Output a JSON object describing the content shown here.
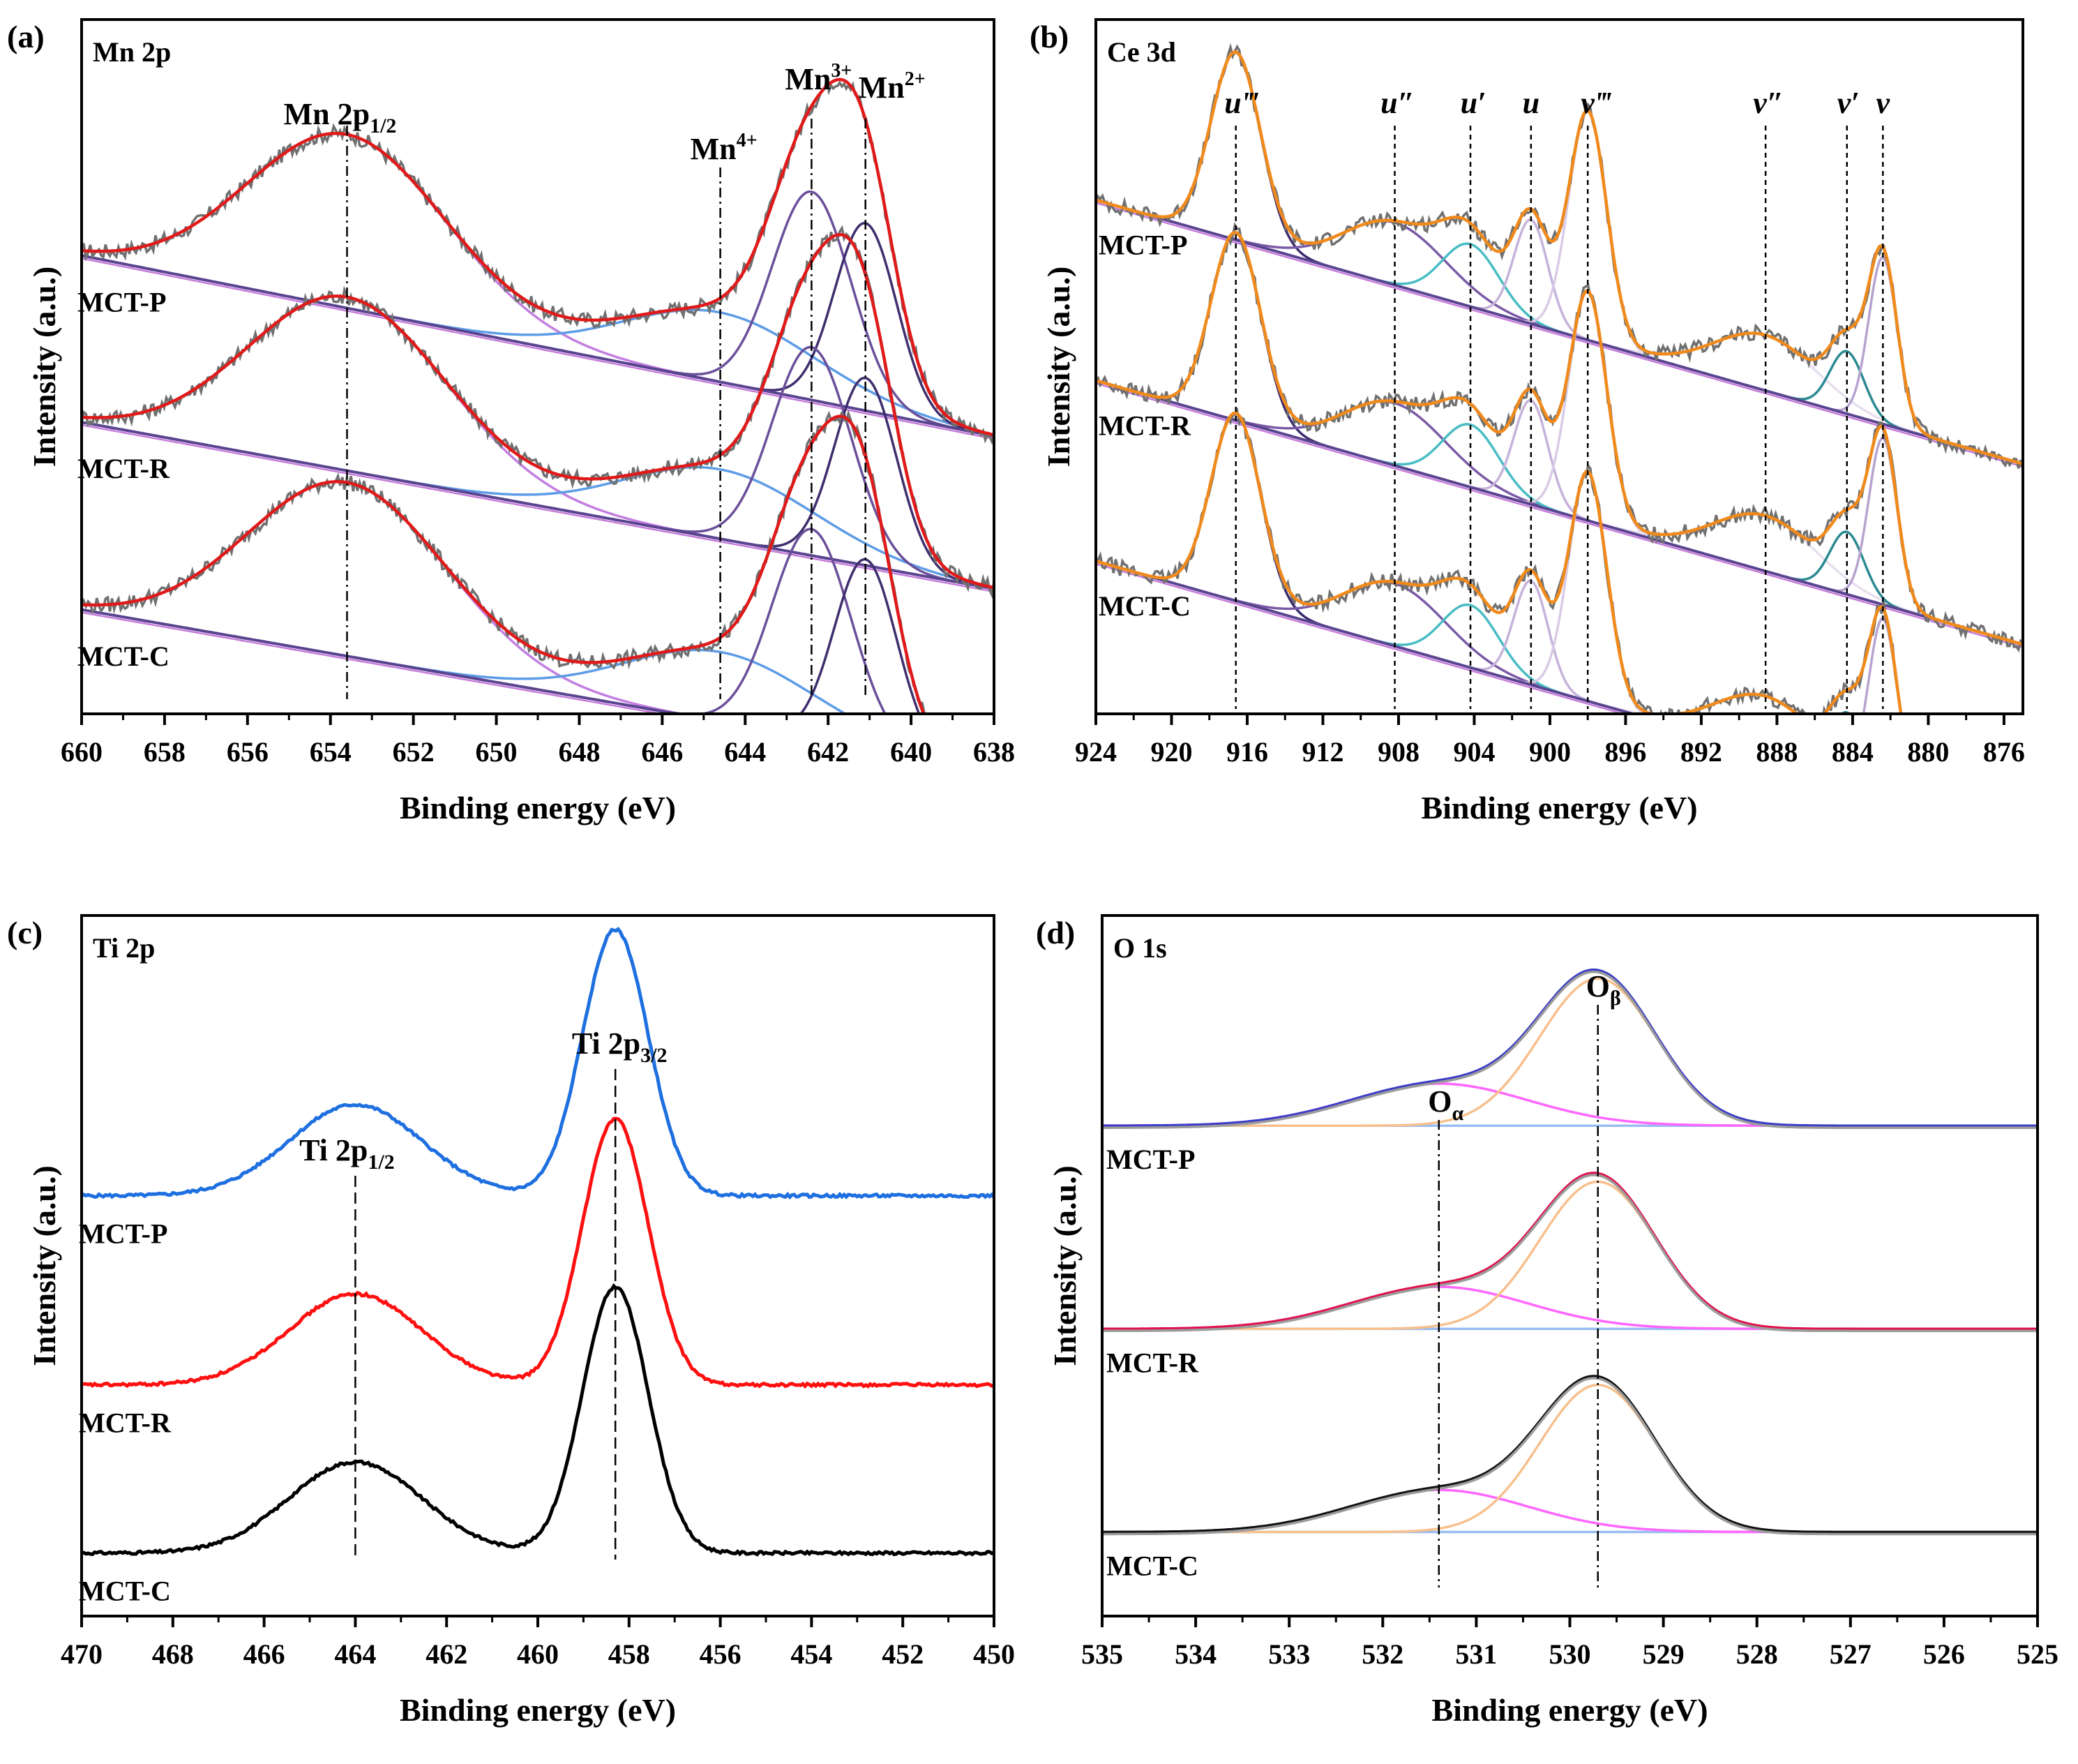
{
  "chart_data": [
    {
      "type": "line",
      "panel": "(a)",
      "region": "Mn 2p",
      "xlabel": "Binding energy (eV)",
      "ylabel": "Intensity (a.u.)",
      "xlim": [
        660,
        638
      ],
      "xticks": [
        660,
        658,
        656,
        654,
        652,
        650,
        648,
        646,
        644,
        642,
        640,
        638
      ],
      "series": [
        {
          "name": "MCT-P",
          "bg": [
            0.66,
            0.4
          ]
        },
        {
          "name": "MCT-R",
          "bg": [
            0.42,
            0.18
          ]
        },
        {
          "name": "MCT-C",
          "bg": [
            0.15,
            -0.08
          ]
        }
      ],
      "components": [
        {
          "center": 653.6,
          "width": 2.4,
          "amp": 0.25,
          "color": "#c27fe0",
          "label": "Mn 2p",
          "sub": "1/2"
        },
        {
          "center": 644.6,
          "width": 2.3,
          "amp": 0.1,
          "color": "#5d9ce6",
          "label": "Mn",
          "sup": "4+"
        },
        {
          "center": 642.4,
          "width": 0.95,
          "amp": 0.3,
          "color": "#6b4f9a",
          "label": "Mn",
          "sup": "3+"
        },
        {
          "center": 641.1,
          "width": 0.75,
          "amp": 0.27,
          "color": "#3f2e6e",
          "label": "Mn",
          "sup": "2+"
        }
      ]
    },
    {
      "type": "line",
      "panel": "(b)",
      "region": "Ce 3d",
      "xlabel": "Binding energy (eV)",
      "ylabel": "Intensity (a.u.)",
      "xlim": [
        924,
        875
      ],
      "xticks": [
        924,
        920,
        916,
        912,
        908,
        904,
        900,
        896,
        892,
        888,
        884,
        880,
        876
      ],
      "series": [
        {
          "name": "MCT-P",
          "bg": [
            0.74,
            0.36
          ]
        },
        {
          "name": "MCT-R",
          "bg": [
            0.48,
            0.1
          ]
        },
        {
          "name": "MCT-C",
          "bg": [
            0.22,
            -0.16
          ]
        }
      ],
      "components": [
        {
          "center": 916.6,
          "width": 1.3,
          "amp": 0.27,
          "color": "#3d2c6e",
          "label": "u‴"
        },
        {
          "center": 908.2,
          "width": 2.7,
          "amp": 0.09,
          "color": "#7b5aa6",
          "label": "u″"
        },
        {
          "center": 904.2,
          "width": 1.5,
          "amp": 0.09,
          "color": "#48bcc4",
          "label": "u′"
        },
        {
          "center": 901.0,
          "width": 0.9,
          "amp": 0.15,
          "color": "#c6b2db",
          "label": "u"
        },
        {
          "center": 898.0,
          "width": 1.0,
          "amp": 0.33,
          "color": "#d9cbe6",
          "label": "v‴"
        },
        {
          "center": 888.6,
          "width": 2.7,
          "amp": 0.08,
          "color": "#e8e0ef",
          "label": "v″"
        },
        {
          "center": 884.3,
          "width": 0.9,
          "amp": 0.09,
          "color": "#2a8a92",
          "label": "v′"
        },
        {
          "center": 882.4,
          "width": 0.75,
          "amp": 0.24,
          "color": "#b7a3cf",
          "label": "v"
        }
      ]
    },
    {
      "type": "line",
      "panel": "(c)",
      "region": "Ti 2p",
      "xlabel": "Binding energy (eV)",
      "ylabel": "Intensity (a.u.)",
      "xlim": [
        470,
        450
      ],
      "xticks": [
        470,
        468,
        466,
        464,
        462,
        460,
        458,
        456,
        454,
        452,
        450
      ],
      "series": [
        {
          "name": "MCT-P",
          "color": "#1e6fe0",
          "offset": 0.6
        },
        {
          "name": "MCT-R",
          "color": "#ff1010",
          "offset": 0.33
        },
        {
          "name": "MCT-C",
          "color": "#000000",
          "offset": 0.09
        }
      ],
      "peaks": [
        {
          "center": 464.0,
          "width": 1.45,
          "amp": 0.13,
          "label": "Ti 2p",
          "sub": "1/2"
        },
        {
          "center": 458.3,
          "width": 0.72,
          "amp": 0.38,
          "label": "Ti 2p",
          "sub": "3/2"
        }
      ]
    },
    {
      "type": "line",
      "panel": "(d)",
      "region": "O 1s",
      "xlabel": "Binding energy (eV)",
      "ylabel": "Intensity (a.u.)",
      "xlim": [
        535,
        525
      ],
      "xticks": [
        535,
        534,
        533,
        532,
        531,
        530,
        529,
        528,
        527,
        526,
        525
      ],
      "series": [
        {
          "name": "MCT-P",
          "offset": 0.7,
          "line": "#3d3dc8"
        },
        {
          "name": "MCT-R",
          "offset": 0.41,
          "line": "#e0134f"
        },
        {
          "name": "MCT-C",
          "offset": 0.12,
          "line": "#111111"
        }
      ],
      "components": [
        {
          "center": 531.4,
          "width": 0.95,
          "amp": 0.06,
          "color": "#ff66ff",
          "label": "O",
          "sub": "α"
        },
        {
          "center": 529.7,
          "width": 0.62,
          "amp": 0.21,
          "color": "#f7c08e",
          "label": "O",
          "sub": "β"
        }
      ]
    }
  ]
}
